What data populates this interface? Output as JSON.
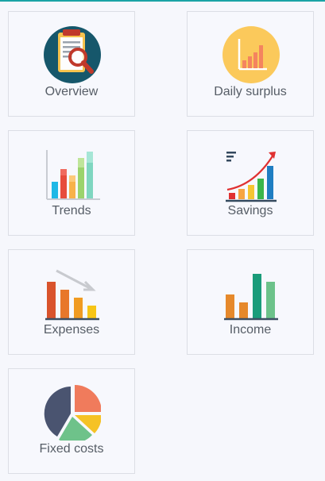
{
  "menu": {
    "tiles": [
      {
        "label": "Overview",
        "icon": "overview-report-icon"
      },
      {
        "label": "Daily surplus",
        "icon": "daily-surplus-chart-icon"
      },
      {
        "label": "Trends",
        "icon": "trends-bar-chart-icon"
      },
      {
        "label": "Savings",
        "icon": "savings-growth-chart-icon"
      },
      {
        "label": "Expenses",
        "icon": "expenses-declining-chart-icon"
      },
      {
        "label": "Income",
        "icon": "income-bar-chart-icon"
      },
      {
        "label": "Fixed costs",
        "icon": "fixed-costs-pie-icon"
      }
    ]
  },
  "colors": {
    "accent_line": "#1aa3a6",
    "tile_border": "#dcdee5",
    "label": "#565d66"
  }
}
